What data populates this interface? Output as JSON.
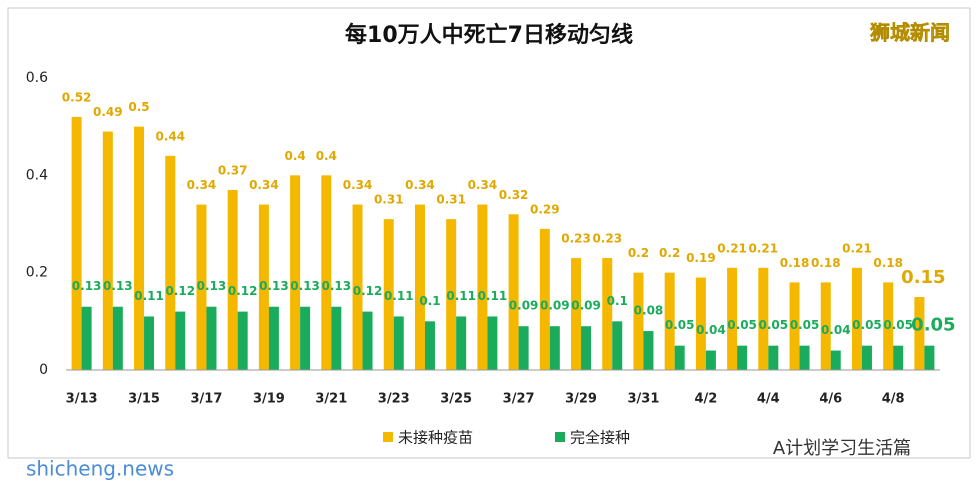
{
  "chart_data": {
    "type": "bar",
    "title": "每10万人中死亡7日移动匀线",
    "categories": [
      "3/13",
      null,
      "3/15",
      null,
      "3/17",
      null,
      "3/19",
      null,
      "3/21",
      null,
      "3/23",
      null,
      "3/25",
      null,
      "3/27",
      null,
      "3/29",
      null,
      "3/31",
      null,
      "4/2",
      null,
      "4/4",
      null,
      "4/6",
      null,
      "4/8",
      null
    ],
    "series": [
      {
        "name": "未接种疫苗",
        "color": "#f5b800",
        "values": [
          0.52,
          0.49,
          0.5,
          0.44,
          0.34,
          0.37,
          0.34,
          0.4,
          0.4,
          0.34,
          0.31,
          0.34,
          0.31,
          0.34,
          0.32,
          0.29,
          0.23,
          0.23,
          0.2,
          0.2,
          0.19,
          0.21,
          0.21,
          0.18,
          0.18,
          0.21,
          0.18,
          0.15
        ]
      },
      {
        "name": "完全接种",
        "color": "#1aab5c",
        "values": [
          0.13,
          0.13,
          0.11,
          0.12,
          0.13,
          0.12,
          0.13,
          0.13,
          0.13,
          0.12,
          0.11,
          0.1,
          0.11,
          0.11,
          0.09,
          0.09,
          0.09,
          0.1,
          0.08,
          0.05,
          0.04,
          0.05,
          0.05,
          0.05,
          0.04,
          0.05,
          0.05,
          0.05
        ]
      }
    ],
    "ylim": [
      0,
      0.6
    ],
    "yticks": [
      0,
      0.2,
      0.4,
      0.6
    ],
    "grid": false,
    "legend": "bottom"
  },
  "watermark": "狮城新闻",
  "source": "shicheng.news",
  "account": "A计划学习生活篇"
}
